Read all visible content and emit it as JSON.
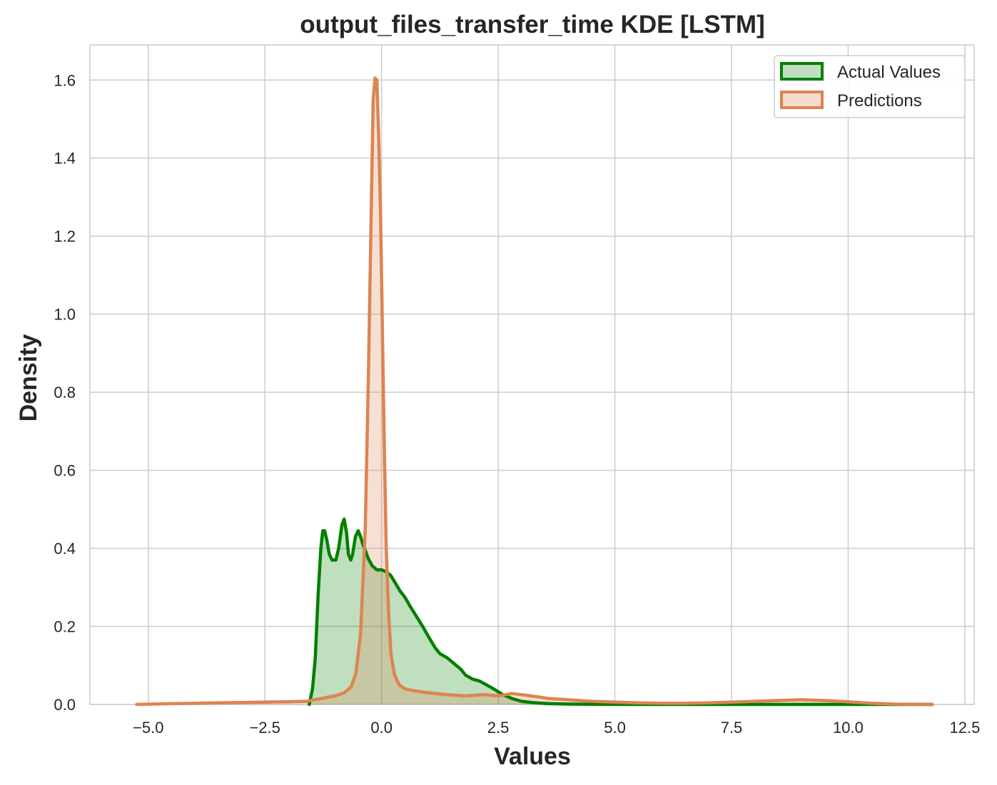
{
  "chart_data": {
    "type": "area",
    "title": "output_files_transfer_time KDE [LSTM]",
    "xlabel": "Values",
    "ylabel": "Density",
    "xlim": [
      -6.25,
      12.7
    ],
    "ylim": [
      0,
      1.69
    ],
    "xticks": [
      -5.0,
      -2.5,
      0.0,
      2.5,
      5.0,
      7.5,
      10.0,
      12.5
    ],
    "xtick_labels": [
      "−5.0",
      "−2.5",
      "0.0",
      "2.5",
      "5.0",
      "7.5",
      "10.0",
      "12.5"
    ],
    "yticks": [
      0.0,
      0.2,
      0.4,
      0.6,
      0.8,
      1.0,
      1.2,
      1.4,
      1.6
    ],
    "ytick_labels": [
      "0.0",
      "0.2",
      "0.4",
      "0.6",
      "0.8",
      "1.0",
      "1.2",
      "1.4",
      "1.6"
    ],
    "grid": true,
    "legend_position": "top-right",
    "series": [
      {
        "name": "Actual Values",
        "color": "#008000",
        "fill": "#c0dfc0",
        "x": [
          -1.55,
          -1.48,
          -1.42,
          -1.36,
          -1.3,
          -1.26,
          -1.22,
          -1.17,
          -1.12,
          -1.06,
          -0.98,
          -0.92,
          -0.85,
          -0.8,
          -0.75,
          -0.71,
          -0.66,
          -0.62,
          -0.56,
          -0.5,
          -0.45,
          -0.4,
          -0.35,
          -0.29,
          -0.2,
          -0.1,
          0.0,
          0.1,
          0.2,
          0.3,
          0.4,
          0.5,
          0.62,
          0.75,
          0.88,
          1.0,
          1.15,
          1.25,
          1.4,
          1.55,
          1.7,
          1.8,
          1.95,
          2.1,
          2.25,
          2.4,
          2.6,
          2.8,
          3.0,
          3.3,
          3.6,
          4.0,
          4.5,
          5.5,
          7.0,
          9.0,
          11.8
        ],
        "y": [
          0.0,
          0.04,
          0.12,
          0.28,
          0.4,
          0.445,
          0.445,
          0.42,
          0.385,
          0.37,
          0.37,
          0.4,
          0.46,
          0.475,
          0.44,
          0.385,
          0.37,
          0.385,
          0.43,
          0.445,
          0.43,
          0.41,
          0.395,
          0.375,
          0.355,
          0.345,
          0.345,
          0.34,
          0.33,
          0.31,
          0.29,
          0.275,
          0.25,
          0.225,
          0.2,
          0.175,
          0.145,
          0.13,
          0.12,
          0.105,
          0.09,
          0.075,
          0.065,
          0.06,
          0.05,
          0.04,
          0.025,
          0.015,
          0.008,
          0.004,
          0.002,
          0.001,
          0.0005,
          0.0,
          0.0,
          0.0,
          0.0
        ]
      },
      {
        "name": "Predictions",
        "color": "#dd8452",
        "fill": "#f6dccd",
        "x": [
          -5.25,
          -4.5,
          -4.0,
          -3.5,
          -3.0,
          -2.5,
          -2.0,
          -1.6,
          -1.3,
          -1.0,
          -0.8,
          -0.65,
          -0.55,
          -0.45,
          -0.35,
          -0.28,
          -0.22,
          -0.18,
          -0.14,
          -0.1,
          -0.06,
          -0.02,
          0.02,
          0.06,
          0.1,
          0.15,
          0.2,
          0.28,
          0.38,
          0.5,
          0.7,
          1.0,
          1.4,
          1.8,
          2.2,
          2.5,
          2.8,
          3.2,
          3.6,
          4.0,
          4.5,
          5.0,
          5.5,
          6.0,
          6.5,
          7.0,
          7.5,
          8.0,
          8.5,
          9.0,
          9.5,
          10.0,
          10.5,
          11.0,
          11.8
        ],
        "y": [
          0.0,
          0.002,
          0.003,
          0.004,
          0.005,
          0.006,
          0.007,
          0.008,
          0.015,
          0.022,
          0.03,
          0.045,
          0.08,
          0.18,
          0.45,
          0.85,
          1.28,
          1.55,
          1.605,
          1.6,
          1.45,
          1.25,
          0.95,
          0.65,
          0.4,
          0.24,
          0.13,
          0.075,
          0.05,
          0.04,
          0.035,
          0.03,
          0.025,
          0.022,
          0.025,
          0.022,
          0.028,
          0.022,
          0.015,
          0.012,
          0.008,
          0.006,
          0.004,
          0.003,
          0.003,
          0.004,
          0.006,
          0.008,
          0.01,
          0.012,
          0.01,
          0.007,
          0.003,
          0.001,
          0.0
        ]
      }
    ]
  }
}
